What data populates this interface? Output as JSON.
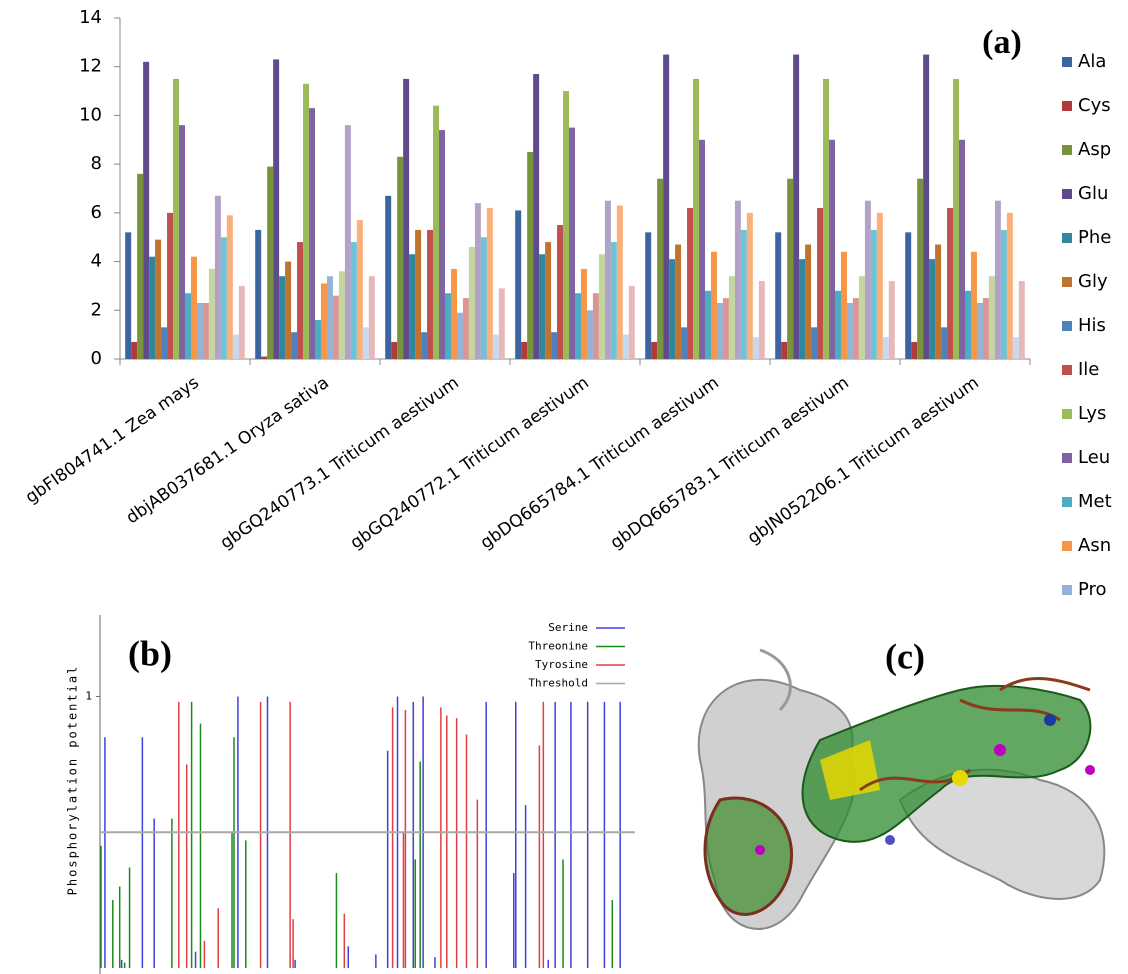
{
  "chart_data": [
    {
      "type": "bar",
      "annotation": "(a)",
      "categories": [
        "gbFI804741.1 Zea mays",
        "dbjAB037681.1 Oryza sativa",
        "gbGQ240773.1 Triticum aestivum",
        "gbGQ240772.1 Triticum aestivum",
        "gbDQ665784.1 Triticum aestivum",
        "gbDQ665783.1 Triticum aestivum",
        "gbJN052206.1 Triticum aestivum"
      ],
      "ylim": [
        0,
        14
      ],
      "yticks": [
        0,
        2,
        4,
        6,
        8,
        10,
        12,
        14
      ],
      "series": [
        {
          "name": "Ala",
          "color": "#3b64a0",
          "values": [
            5.2,
            5.3,
            6.7,
            6.1,
            5.2,
            5.2,
            5.2
          ]
        },
        {
          "name": "Cys",
          "color": "#b03c3a",
          "values": [
            0.7,
            0.1,
            0.7,
            0.7,
            0.7,
            0.7,
            0.7
          ]
        },
        {
          "name": "Asp",
          "color": "#77933c",
          "values": [
            7.6,
            7.9,
            8.3,
            8.5,
            7.4,
            7.4,
            7.4
          ]
        },
        {
          "name": "Glu",
          "color": "#5f4b8b",
          "values": [
            12.2,
            12.3,
            11.5,
            11.7,
            12.5,
            12.5,
            12.5
          ]
        },
        {
          "name": "Phe",
          "color": "#31859c",
          "values": [
            4.2,
            3.4,
            4.3,
            4.3,
            4.1,
            4.1,
            4.1
          ]
        },
        {
          "name": "Gly",
          "color": "#c0722f",
          "values": [
            4.9,
            4.0,
            5.3,
            4.8,
            4.7,
            4.7,
            4.7
          ]
        },
        {
          "name": "His",
          "color": "#4f81bd",
          "values": [
            1.3,
            1.1,
            1.1,
            1.1,
            1.3,
            1.3,
            1.3
          ]
        },
        {
          "name": "Ile",
          "color": "#c0504d",
          "values": [
            6.0,
            4.8,
            5.3,
            5.5,
            6.2,
            6.2,
            6.2
          ]
        },
        {
          "name": "Lys",
          "color": "#9bbb59",
          "values": [
            11.5,
            11.3,
            10.4,
            11.0,
            11.5,
            11.5,
            11.5
          ]
        },
        {
          "name": "Leu",
          "color": "#8064a2",
          "values": [
            9.6,
            10.3,
            9.4,
            9.5,
            9.0,
            9.0,
            9.0
          ]
        },
        {
          "name": "Met",
          "color": "#4bacc6",
          "values": [
            2.7,
            1.6,
            2.7,
            2.7,
            2.8,
            2.8,
            2.8
          ]
        },
        {
          "name": "Asn",
          "color": "#f79646",
          "values": [
            4.2,
            3.1,
            3.7,
            3.7,
            4.4,
            4.4,
            4.4
          ]
        },
        {
          "name": "Pro",
          "color": "#95b3d7",
          "values": [
            2.3,
            3.4,
            1.9,
            2.0,
            2.3,
            2.3,
            2.3
          ]
        },
        {
          "color": "#d99694",
          "values": [
            2.3,
            2.6,
            2.5,
            2.7,
            2.5,
            2.5,
            2.5
          ]
        },
        {
          "color": "#c3d69b",
          "values": [
            3.7,
            3.6,
            4.6,
            4.3,
            3.4,
            3.4,
            3.4
          ]
        },
        {
          "color": "#b3a2c7",
          "values": [
            6.7,
            9.6,
            6.4,
            6.5,
            6.5,
            6.5,
            6.5
          ]
        },
        {
          "color": "#6fc3d8",
          "values": [
            5.0,
            4.8,
            5.0,
            4.8,
            5.3,
            5.3,
            5.3
          ]
        },
        {
          "color": "#fab07a",
          "values": [
            5.9,
            5.7,
            6.2,
            6.3,
            6.0,
            6.0,
            6.0
          ]
        },
        {
          "color": "#c6d9f1",
          "values": [
            1.0,
            1.3,
            1.0,
            1.0,
            0.9,
            0.9,
            0.9
          ]
        },
        {
          "color": "#e6b9b8",
          "values": [
            3.0,
            3.4,
            2.9,
            3.0,
            3.2,
            3.2,
            3.2
          ]
        }
      ]
    },
    {
      "type": "stem",
      "annotation": "(b)",
      "y_label": "Phosphorylation potential",
      "xlim": [
        0,
        540
      ],
      "ylim": [
        0,
        1.3
      ],
      "yticks": [
        1
      ],
      "threshold": {
        "name": "Threshold",
        "color": "#a8a8a8",
        "value": 0.5
      },
      "series": [
        {
          "name": "Serine",
          "color": "#4040e0",
          "x": [
            5,
            22,
            43,
            55,
            97,
            140,
            170,
            198,
            252,
            280,
            292,
            302,
            318,
            328,
            340,
            392,
            420,
            422,
            432,
            455,
            462,
            478,
            495,
            512,
            528
          ],
          "values": [
            0.85,
            0.03,
            0.85,
            0.55,
            0.06,
            1.0,
            1.0,
            0.03,
            0.08,
            0.05,
            0.8,
            1.0,
            0.98,
            1.0,
            0.04,
            0.98,
            0.35,
            0.98,
            0.6,
            0.03,
            0.98,
            0.98,
            0.98,
            0.98,
            0.98
          ]
        },
        {
          "name": "Threonine",
          "color": "#1a8a1a",
          "x": [
            1,
            13,
            20,
            25,
            30,
            73,
            93,
            102,
            134,
            136,
            148,
            240,
            320,
            325,
            470,
            520
          ],
          "values": [
            0.45,
            0.25,
            0.3,
            0.02,
            0.37,
            0.55,
            0.98,
            0.9,
            0.5,
            0.85,
            0.47,
            0.35,
            0.4,
            0.76,
            0.4,
            0.25
          ]
        },
        {
          "name": "Tyrosine",
          "color": "#e04040",
          "x": [
            80,
            88,
            106,
            120,
            163,
            193,
            196,
            248,
            297,
            308,
            310,
            346,
            352,
            362,
            372,
            383,
            446,
            450
          ],
          "values": [
            0.98,
            0.75,
            0.1,
            0.22,
            0.98,
            0.98,
            0.18,
            0.2,
            0.96,
            0.5,
            0.95,
            0.96,
            0.93,
            0.92,
            0.86,
            0.62,
            0.82,
            0.98
          ]
        }
      ]
    }
  ],
  "image_panel": {
    "label": "(c)"
  }
}
